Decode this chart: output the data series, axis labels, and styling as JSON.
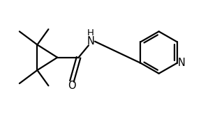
{
  "background_color": "#ffffff",
  "line_color": "#000000",
  "line_width": 1.6,
  "font_size": 9.5,
  "fig_width": 3.21,
  "fig_height": 1.67,
  "dpi": 100,
  "xlim": [
    0,
    10
  ],
  "ylim": [
    0,
    5.2
  ]
}
